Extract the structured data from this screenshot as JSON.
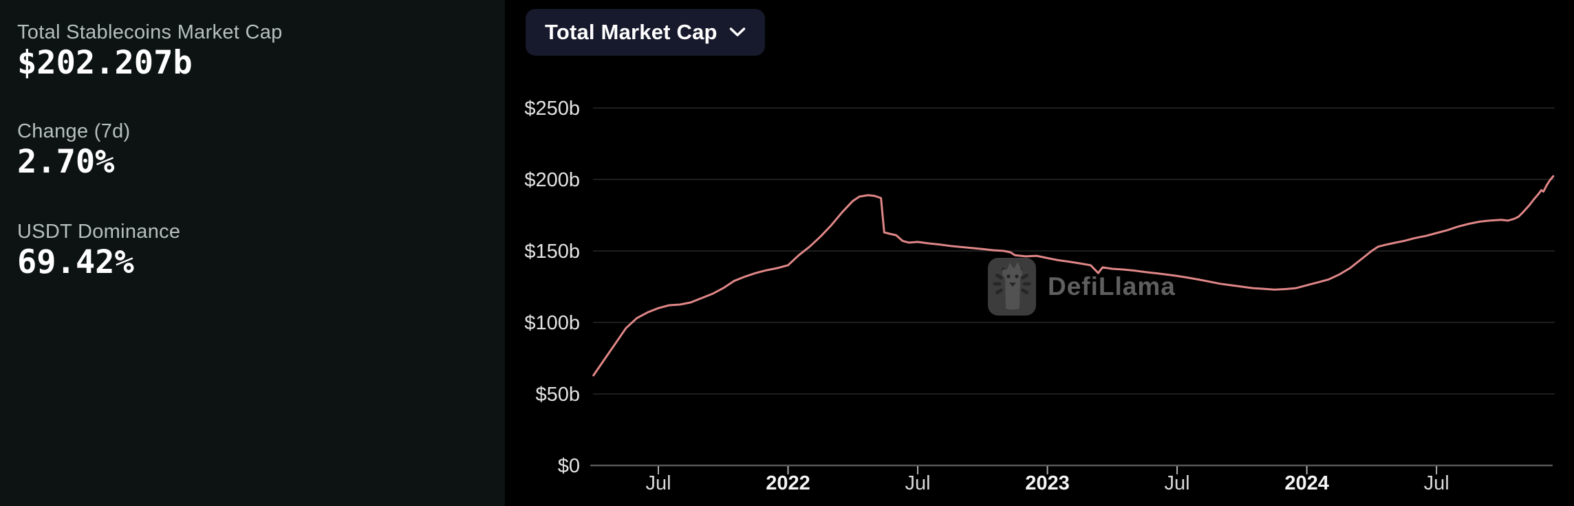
{
  "panel": {
    "stats": [
      {
        "label": "Total Stablecoins Market Cap",
        "value": "$202.207b"
      },
      {
        "label": "Change (7d)",
        "value": "2.70%"
      },
      {
        "label": "USDT Dominance",
        "value": "69.42%"
      }
    ]
  },
  "toolbar": {
    "selector_label": "Total Market Cap",
    "chevron_icon": "chevron-down"
  },
  "watermark": {
    "text": "DefiLlama",
    "icon": "defillama-llama-logo"
  },
  "colors": {
    "line": "#e18788",
    "left_panel_bg": "#0c1312",
    "chart_bg": "#000000",
    "button_bg": "#171a2c",
    "grid": "#1e1e1e",
    "axis": "#565656"
  },
  "chart_data": {
    "type": "line",
    "title": "Total Market Cap",
    "series_name": "Total Stablecoins Market Cap (USD billions)",
    "unit": "USD billions",
    "line_color": "#e18788",
    "x_unit": "months_since_2021-01-01",
    "x_range_dates": [
      "2021-04",
      "2024-12"
    ],
    "ylim": [
      0,
      262
    ],
    "grid": true,
    "legend": "none",
    "y_ticks": [
      {
        "label": "$0",
        "value": 0
      },
      {
        "label": "$50b",
        "value": 50
      },
      {
        "label": "$100b",
        "value": 100
      },
      {
        "label": "$150b",
        "value": 150
      },
      {
        "label": "$200b",
        "value": 200
      },
      {
        "label": "$250b",
        "value": 250
      }
    ],
    "x_ticks": [
      {
        "label": "Jul",
        "month": 6,
        "bold": false
      },
      {
        "label": "2022",
        "month": 12,
        "bold": true
      },
      {
        "label": "Jul",
        "month": 18,
        "bold": false
      },
      {
        "label": "2023",
        "month": 24,
        "bold": true
      },
      {
        "label": "Jul",
        "month": 30,
        "bold": false
      },
      {
        "label": "2024",
        "month": 36,
        "bold": true
      },
      {
        "label": "Jul",
        "month": 42,
        "bold": false
      }
    ],
    "points": [
      [
        3,
        63
      ],
      [
        3.5,
        74
      ],
      [
        4,
        85
      ],
      [
        4.5,
        96
      ],
      [
        5,
        103
      ],
      [
        5.5,
        107
      ],
      [
        6,
        110
      ],
      [
        6.5,
        112
      ],
      [
        7,
        112.5
      ],
      [
        7.5,
        114
      ],
      [
        8,
        117
      ],
      [
        8.5,
        120
      ],
      [
        9,
        124
      ],
      [
        9.5,
        129
      ],
      [
        10,
        132
      ],
      [
        10.5,
        134.5
      ],
      [
        11,
        136.5
      ],
      [
        11.5,
        138
      ],
      [
        12,
        140
      ],
      [
        12.5,
        147
      ],
      [
        13,
        153
      ],
      [
        13.5,
        160
      ],
      [
        14,
        168
      ],
      [
        14.5,
        177
      ],
      [
        15,
        185
      ],
      [
        15.3,
        188
      ],
      [
        15.7,
        189
      ],
      [
        16,
        188.5
      ],
      [
        16.2,
        187.5
      ],
      [
        16.3,
        187
      ],
      [
        16.45,
        163
      ],
      [
        16.7,
        162
      ],
      [
        17,
        161
      ],
      [
        17.3,
        157
      ],
      [
        17.6,
        155.8
      ],
      [
        18,
        156.3
      ],
      [
        18.5,
        155.3
      ],
      [
        19,
        154.5
      ],
      [
        19.5,
        153.5
      ],
      [
        20,
        152.8
      ],
      [
        20.5,
        152
      ],
      [
        21,
        151.3
      ],
      [
        21.5,
        150.5
      ],
      [
        22,
        150
      ],
      [
        22.3,
        149
      ],
      [
        22.5,
        147
      ],
      [
        23,
        146.2
      ],
      [
        23.5,
        146.6
      ],
      [
        24,
        145
      ],
      [
        24.5,
        143.5
      ],
      [
        25,
        142.5
      ],
      [
        25.5,
        141.3
      ],
      [
        26,
        140
      ],
      [
        26.35,
        134.5
      ],
      [
        26.55,
        138.5
      ],
      [
        27,
        137.5
      ],
      [
        27.5,
        137
      ],
      [
        28,
        136.3
      ],
      [
        28.5,
        135.3
      ],
      [
        29,
        134.4
      ],
      [
        29.5,
        133.5
      ],
      [
        30,
        132.5
      ],
      [
        30.5,
        131.3
      ],
      [
        31,
        130
      ],
      [
        31.5,
        128.5
      ],
      [
        32,
        127
      ],
      [
        32.5,
        126
      ],
      [
        33,
        125
      ],
      [
        33.5,
        124
      ],
      [
        34,
        123.5
      ],
      [
        34.5,
        123
      ],
      [
        35,
        123.3
      ],
      [
        35.5,
        124
      ],
      [
        36,
        126
      ],
      [
        36.5,
        128
      ],
      [
        37,
        130
      ],
      [
        37.5,
        133.5
      ],
      [
        38,
        138
      ],
      [
        38.5,
        144
      ],
      [
        39,
        150
      ],
      [
        39.3,
        153
      ],
      [
        39.7,
        154.5
      ],
      [
        40,
        155.5
      ],
      [
        40.5,
        157
      ],
      [
        41,
        159
      ],
      [
        41.5,
        160.5
      ],
      [
        42,
        162.5
      ],
      [
        42.5,
        164.5
      ],
      [
        43,
        167
      ],
      [
        43.5,
        169
      ],
      [
        44,
        170.5
      ],
      [
        44.5,
        171.3
      ],
      [
        45,
        171.8
      ],
      [
        45.3,
        171.2
      ],
      [
        45.6,
        172.5
      ],
      [
        45.8,
        174
      ],
      [
        46,
        177
      ],
      [
        46.3,
        182
      ],
      [
        46.5,
        186
      ],
      [
        46.7,
        189.5
      ],
      [
        46.85,
        192.5
      ],
      [
        46.95,
        191.5
      ],
      [
        47.1,
        196
      ],
      [
        47.25,
        199.5
      ],
      [
        47.4,
        202.2
      ]
    ]
  }
}
